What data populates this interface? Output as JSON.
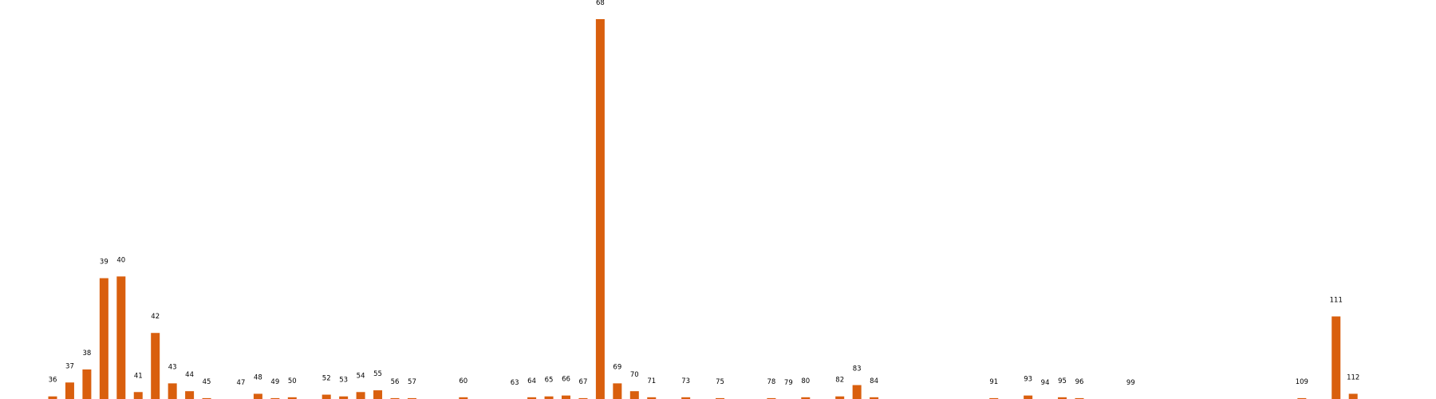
{
  "chart_data": {
    "type": "bar",
    "categories": [
      "36",
      "37",
      "38",
      "39",
      "40",
      "41",
      "42",
      "43",
      "44",
      "45",
      "47",
      "48",
      "49",
      "50",
      "52",
      "53",
      "54",
      "55",
      "56",
      "57",
      "60",
      "63",
      "64",
      "65",
      "66",
      "67",
      "68",
      "69",
      "70",
      "71",
      "73",
      "75",
      "78",
      "79",
      "80",
      "82",
      "83",
      "84",
      "91",
      "93",
      "94",
      "95",
      "96",
      "99",
      "109",
      "111",
      "112"
    ],
    "x": [
      36,
      37,
      38,
      39,
      40,
      41,
      42,
      43,
      44,
      45,
      47,
      48,
      49,
      50,
      52,
      53,
      54,
      55,
      56,
      57,
      60,
      63,
      64,
      65,
      66,
      67,
      68,
      69,
      70,
      71,
      73,
      75,
      78,
      79,
      80,
      82,
      83,
      84,
      91,
      93,
      94,
      95,
      96,
      99,
      109,
      111,
      112
    ],
    "values": [
      3,
      19,
      34,
      139,
      141,
      8,
      76,
      18,
      9,
      1,
      0,
      6,
      1,
      2,
      5,
      3,
      8,
      10,
      1,
      1,
      2,
      0,
      2,
      3,
      4,
      1,
      437,
      18,
      9,
      2,
      2,
      1,
      1,
      0,
      2,
      3,
      16,
      2,
      1,
      4,
      0,
      2,
      1,
      0,
      1,
      95,
      6
    ],
    "color": "#d95f0e",
    "title": "",
    "xlabel": "",
    "ylabel": "",
    "ylim": [
      0,
      437
    ],
    "xlim": [
      33,
      113
    ],
    "grid": false,
    "axes_visible": false,
    "legend": "none"
  }
}
